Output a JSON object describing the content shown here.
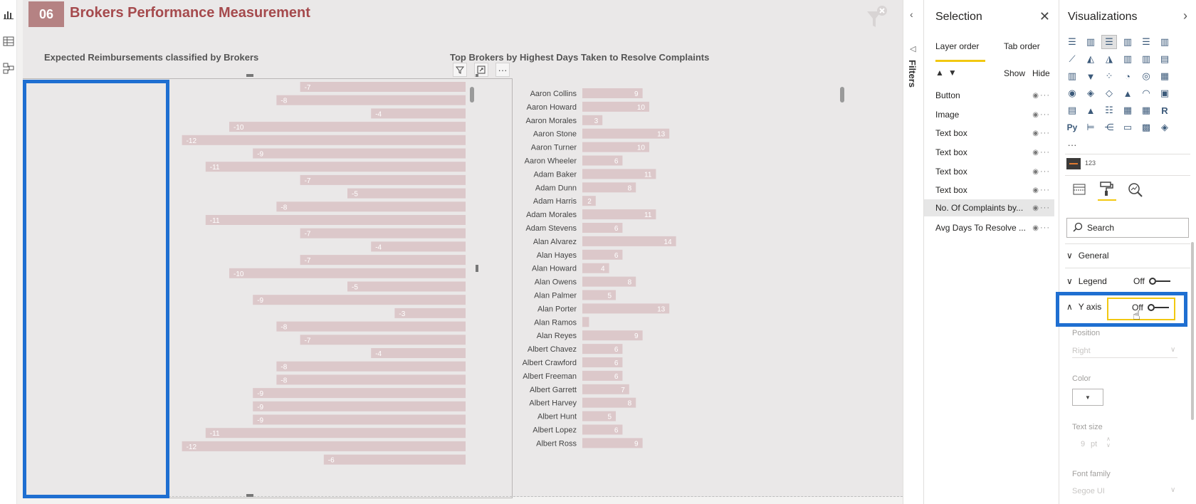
{
  "report": {
    "page_number": "06",
    "title": "Brokers Performance Measurement"
  },
  "visual_left": {
    "title": "Expected Reimbursements classified by Brokers"
  },
  "visual_right": {
    "title": "Top Brokers by Highest Days Taken to Resolve Complaints"
  },
  "chart_data": [
    {
      "type": "bar",
      "orientation": "horizontal",
      "title": "Expected Reimbursements classified by Brokers",
      "values": [
        -7,
        -8,
        -4,
        -10,
        -12,
        -9,
        -11,
        -7,
        -5,
        -8,
        -11,
        -7,
        -4,
        -7,
        -10,
        -5,
        -9,
        -3,
        -8,
        -7,
        -4,
        -8,
        -8,
        -9,
        -9,
        -9,
        -11,
        -12,
        -6
      ],
      "bar_color": "#dcc8ca",
      "label_color": "#ffffff"
    },
    {
      "type": "bar",
      "orientation": "horizontal",
      "title": "Top Brokers by Highest Days Taken to Resolve Complaints",
      "categories": [
        "Aaron Collins",
        "Aaron Howard",
        "Aaron Morales",
        "Aaron Stone",
        "Aaron Turner",
        "Aaron Wheeler",
        "Adam Baker",
        "Adam Dunn",
        "Adam Harris",
        "Adam Morales",
        "Adam Stevens",
        "Alan Alvarez",
        "Alan Hayes",
        "Alan Howard",
        "Alan Owens",
        "Alan Palmer",
        "Alan Porter",
        "Alan Ramos",
        "Alan Reyes",
        "Albert Chavez",
        "Albert Crawford",
        "Albert Freeman",
        "Albert Garrett",
        "Albert Harvey",
        "Albert Hunt",
        "Albert Lopez",
        "Albert Ross"
      ],
      "values": [
        9,
        10,
        3,
        13,
        10,
        6,
        11,
        8,
        2,
        11,
        6,
        14,
        6,
        4,
        8,
        5,
        13,
        1,
        9,
        6,
        6,
        6,
        7,
        8,
        5,
        6,
        9
      ],
      "labels": [
        "9",
        "10",
        "3",
        "13",
        "10",
        "6",
        "11",
        "8",
        "2",
        "11",
        "6",
        "14",
        "6",
        "4",
        "8",
        "5",
        "13",
        "",
        "9",
        "6",
        "6",
        "6",
        "7",
        "8",
        "5",
        "6",
        "9"
      ],
      "bar_color": "#dcc8ca",
      "label_color": "#ffffff"
    }
  ],
  "filters_pane": {
    "label": "Filters"
  },
  "selection_pane": {
    "title": "Selection",
    "tabs": [
      "Layer order",
      "Tab order"
    ],
    "show_label": "Show",
    "hide_label": "Hide",
    "items": [
      "Button",
      "Image",
      "Text box",
      "Text box",
      "Text box",
      "Text box",
      "No. Of Complaints by...",
      "Avg Days To Resolve ..."
    ]
  },
  "visualizations_pane": {
    "title": "Visualizations",
    "more": "···",
    "custom_visual_label": "123",
    "search_placeholder": "Search",
    "sections": {
      "general": "General",
      "legend": "Legend",
      "legend_toggle": "Off",
      "y_axis": "Y axis",
      "y_axis_toggle": "Off"
    },
    "properties": {
      "position_label": "Position",
      "position_value": "Right",
      "color_label": "Color",
      "text_size_label": "Text size",
      "text_size_value": "9",
      "text_size_unit": "pt",
      "font_family_label": "Font family",
      "font_family_value": "Segoe UI"
    }
  },
  "colors": {
    "title_accent": "#a54a4d",
    "page_badge": "#b58283",
    "highlight_blue": "#1f6fd1",
    "toggle_highlight": "#f2c811",
    "bar": "#dcc8ca"
  }
}
